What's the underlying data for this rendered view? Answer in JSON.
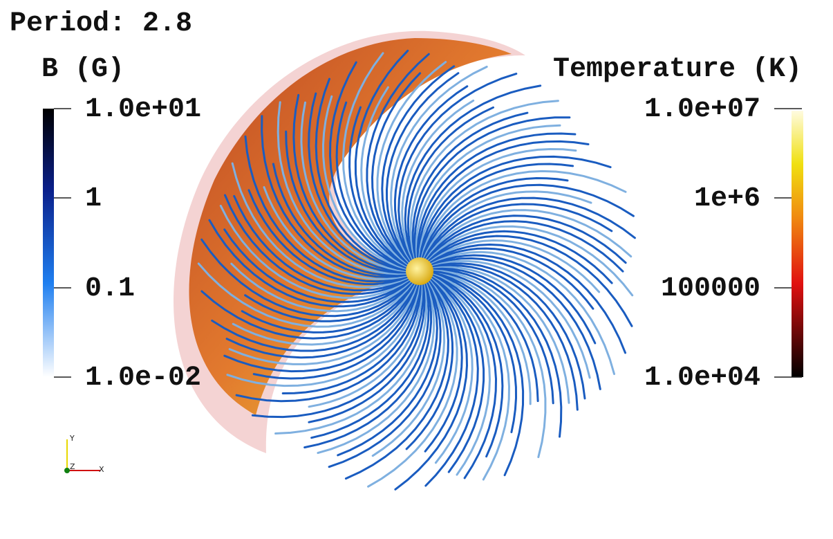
{
  "title": "Period: 2.8",
  "left_colorbar": {
    "title": "B (G)",
    "labels": [
      "1.0e+01",
      "1",
      "0.1",
      "1.0e-02"
    ]
  },
  "right_colorbar": {
    "title": "Temperature (K)",
    "labels": [
      "1.0e+07",
      "1e+6",
      "100000",
      "1.0e+04"
    ]
  },
  "axes_triad": {
    "labels": [
      "Y",
      "Z",
      "X"
    ]
  }
}
